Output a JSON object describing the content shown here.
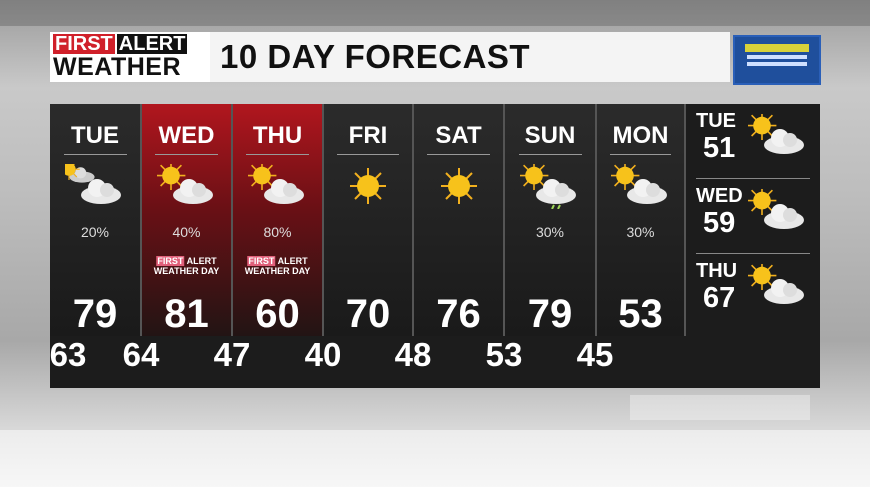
{
  "header": {
    "logo_first": "FIRST",
    "logo_alert": "ALERT",
    "logo_weather": "WEATHER",
    "title": "10 DAY FORECAST"
  },
  "colors": {
    "alert_red": "#b1161e",
    "panel": "#1c1c1c",
    "sponsor_blue": "#1f4f9c"
  },
  "days": [
    {
      "name": "TUE",
      "icon": "partly-cloudy-icon",
      "precip": "20%",
      "high": "79",
      "alert": false
    },
    {
      "name": "WED",
      "icon": "partly-sunny-icon",
      "precip": "40%",
      "high": "81",
      "alert": true
    },
    {
      "name": "THU",
      "icon": "partly-sunny-icon",
      "precip": "80%",
      "high": "60",
      "alert": true
    },
    {
      "name": "FRI",
      "icon": "sunny-icon",
      "precip": "",
      "high": "70",
      "alert": false
    },
    {
      "name": "SAT",
      "icon": "sunny-icon",
      "precip": "",
      "high": "76",
      "alert": false
    },
    {
      "name": "SUN",
      "icon": "sun-cloud-shower-icon",
      "precip": "30%",
      "high": "79",
      "alert": false
    },
    {
      "name": "MON",
      "icon": "partly-sunny-icon",
      "precip": "30%",
      "high": "53",
      "alert": false
    }
  ],
  "lows": [
    "63",
    "64",
    "47",
    "40",
    "48",
    "53",
    "45"
  ],
  "badge": {
    "first": "FIRST",
    "alert": "ALERT",
    "line2": "WEATHER DAY"
  },
  "extended": [
    {
      "name": "TUE",
      "temp": "51",
      "icon": "partly-sunny-icon"
    },
    {
      "name": "WED",
      "temp": "59",
      "icon": "partly-sunny-icon"
    },
    {
      "name": "THU",
      "temp": "67",
      "icon": "partly-sunny-icon"
    }
  ]
}
